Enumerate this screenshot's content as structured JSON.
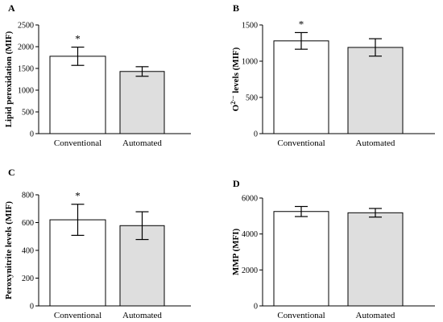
{
  "chart_data": [
    {
      "panel": "A",
      "type": "bar",
      "categories": [
        "Conventional",
        "Automated"
      ],
      "values": [
        1780,
        1430
      ],
      "errors": [
        210,
        110
      ],
      "significance": [
        "*",
        ""
      ],
      "ylabel": "Lipid peroxidation (MIF)",
      "ylim": [
        0,
        2500
      ],
      "yticks": [
        0,
        500,
        1000,
        1500,
        2000,
        2500
      ],
      "colors": [
        "#ffffff",
        "#dedede"
      ]
    },
    {
      "panel": "B",
      "type": "bar",
      "categories": [
        "Conventional",
        "Automated"
      ],
      "values": [
        1280,
        1190
      ],
      "errors": [
        115,
        120
      ],
      "significance": [
        "*",
        ""
      ],
      "ylabel_main": "O",
      "ylabel_sup": "2·−",
      "ylabel_rest": " levels (MIF)",
      "ylim": [
        0,
        1500
      ],
      "yticks": [
        0,
        500,
        1000,
        1500
      ],
      "colors": [
        "#ffffff",
        "#dedede"
      ]
    },
    {
      "panel": "C",
      "type": "bar",
      "categories": [
        "Conventional",
        "Automated"
      ],
      "values": [
        620,
        578
      ],
      "errors": [
        112,
        100
      ],
      "significance": [
        "*",
        ""
      ],
      "ylabel": "Peroxynitrite levels (MIF)",
      "ylim": [
        0,
        800
      ],
      "yticks": [
        0,
        200,
        400,
        600,
        800
      ],
      "colors": [
        "#ffffff",
        "#dedede"
      ]
    },
    {
      "panel": "D",
      "type": "bar",
      "categories": [
        "Conventional",
        "Automated"
      ],
      "values": [
        5250,
        5180
      ],
      "errors": [
        280,
        240
      ],
      "significance": [
        "",
        ""
      ],
      "ylabel": "MMP (MFI)",
      "ylim": [
        0,
        6000
      ],
      "yticks": [
        0,
        2000,
        4000,
        6000
      ],
      "colors": [
        "#ffffff",
        "#dedede"
      ]
    }
  ]
}
